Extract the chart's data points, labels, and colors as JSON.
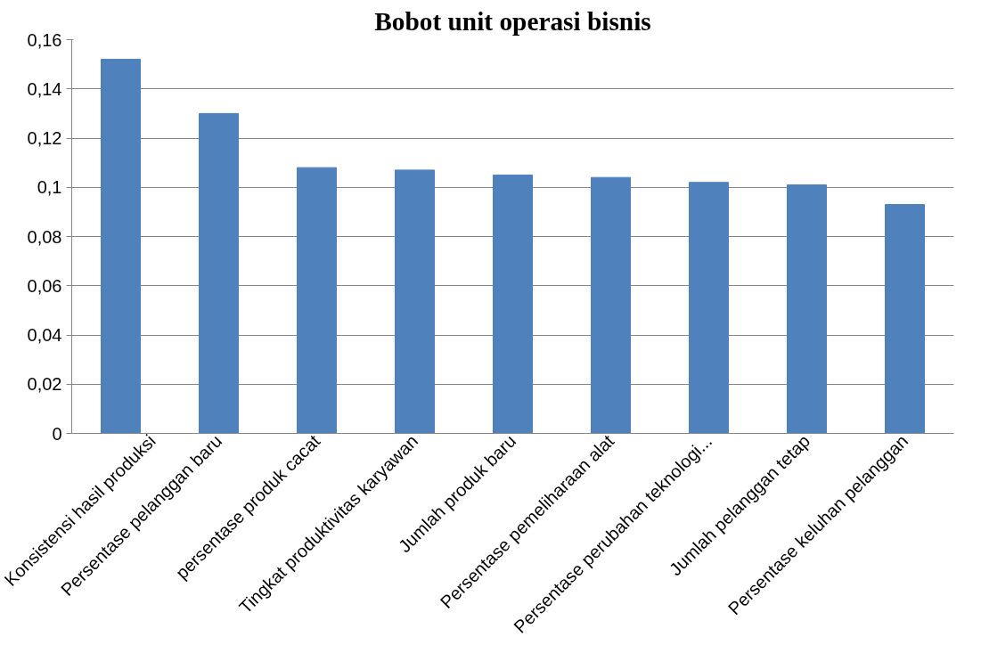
{
  "chart_data": {
    "type": "bar",
    "title": "Bobot unit operasi bisnis",
    "categories": [
      "Konsistensi hasil produksi",
      "Persentase pelanggan baru",
      "persentase produk cacat",
      "Tingkat produktivitas karyawan",
      "Jumlah produk baru",
      "Persentase pemeliharaan alat",
      "Persentase perubahan teknologi...",
      "Jumlah pelanggan tetap",
      "Persentase keluhan pelanggan"
    ],
    "values": [
      0.152,
      0.13,
      0.108,
      0.107,
      0.105,
      0.104,
      0.102,
      0.101,
      0.093
    ],
    "color": "#4f81bd",
    "ylim": [
      0,
      0.16
    ],
    "yticks": [
      {
        "value": 0,
        "label": "0"
      },
      {
        "value": 0.02,
        "label": "0,02"
      },
      {
        "value": 0.04,
        "label": "0,04"
      },
      {
        "value": 0.06,
        "label": "0,06"
      },
      {
        "value": 0.08,
        "label": "0,08"
      },
      {
        "value": 0.1,
        "label": "0,1"
      },
      {
        "value": 0.12,
        "label": "0,12"
      },
      {
        "value": 0.14,
        "label": "0,14"
      },
      {
        "value": 0.16,
        "label": "0,16"
      }
    ],
    "grid": "y"
  }
}
